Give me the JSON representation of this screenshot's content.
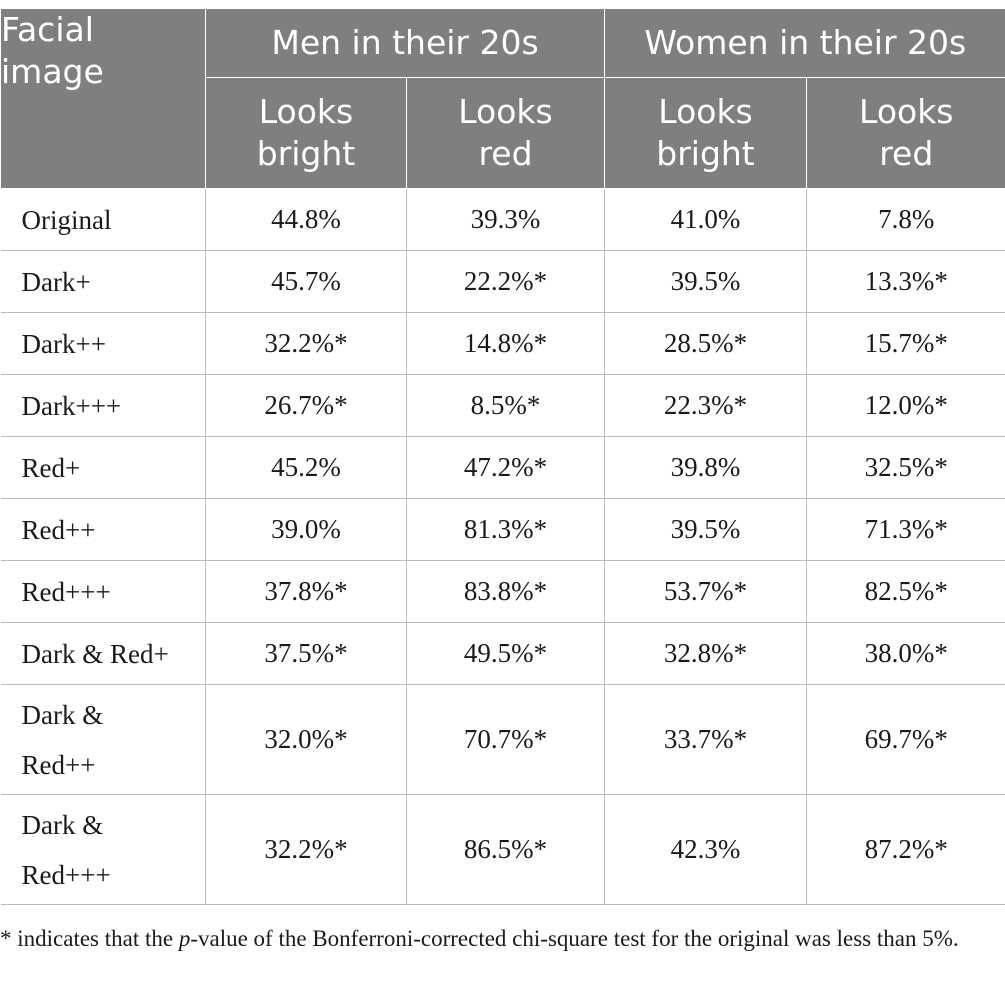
{
  "table": {
    "header": {
      "facial_label_line1": "Facial",
      "facial_label_line2": "image",
      "groups": [
        "Men in their 20s",
        "Women in their 20s"
      ],
      "sub_columns": [
        {
          "line1": "Looks",
          "line2": "bright"
        },
        {
          "line1": "Looks",
          "line2": "red"
        },
        {
          "line1": "Looks",
          "line2": "bright"
        },
        {
          "line1": "Looks",
          "line2": "red"
        }
      ]
    },
    "rows": [
      {
        "label_line1": "Original",
        "label_line2": "",
        "values": [
          "44.8%",
          "39.3%",
          "41.0%",
          "7.8%"
        ]
      },
      {
        "label_line1": "Dark+",
        "label_line2": "",
        "values": [
          "45.7%",
          "22.2%*",
          "39.5%",
          "13.3%*"
        ]
      },
      {
        "label_line1": "Dark++",
        "label_line2": "",
        "values": [
          "32.2%*",
          "14.8%*",
          "28.5%*",
          "15.7%*"
        ]
      },
      {
        "label_line1": "Dark+++",
        "label_line2": "",
        "values": [
          "26.7%*",
          "8.5%*",
          "22.3%*",
          "12.0%*"
        ]
      },
      {
        "label_line1": "Red+",
        "label_line2": "",
        "values": [
          "45.2%",
          "47.2%*",
          "39.8%",
          "32.5%*"
        ]
      },
      {
        "label_line1": "Red++",
        "label_line2": "",
        "values": [
          "39.0%",
          "81.3%*",
          "39.5%",
          "71.3%*"
        ]
      },
      {
        "label_line1": "Red+++",
        "label_line2": "",
        "values": [
          "37.8%*",
          "83.8%*",
          "53.7%*",
          "82.5%*"
        ]
      },
      {
        "label_line1": "Dark & Red+",
        "label_line2": "",
        "values": [
          "37.5%*",
          "49.5%*",
          "32.8%*",
          "38.0%*"
        ]
      },
      {
        "label_line1": "Dark &",
        "label_line2": "Red++",
        "values": [
          "32.0%*",
          "70.7%*",
          "33.7%*",
          "69.7%*"
        ]
      },
      {
        "label_line1": "Dark &",
        "label_line2": "Red+++",
        "values": [
          "32.2%*",
          "86.5%*",
          "42.3%",
          "87.2%*"
        ]
      }
    ]
  },
  "footnote": {
    "before": "* indicates that the ",
    "italic": "p",
    "after": "-value of the Bonferroni-corrected chi-square test for the original was less than 5%."
  },
  "colors": {
    "header_background": "#7f7f7e",
    "header_text": "#ffffff",
    "grid_lines": "#bcbcbc",
    "body_text": "#1a1a1a"
  }
}
